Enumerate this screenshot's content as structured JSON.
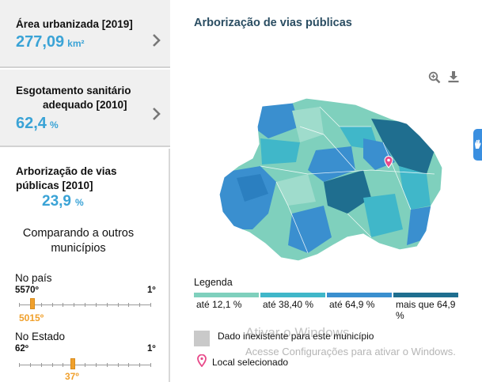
{
  "cards": [
    {
      "title": "Área urbanizada [2019]",
      "value": "277,09",
      "unit": "km²"
    },
    {
      "title_line1": "Esgotamento sanitário",
      "title_line2": "adequado [2010]",
      "value": "62,4",
      "unit": "%"
    }
  ],
  "arborizacao": {
    "title": "Arborização de vias públicas [2010]",
    "value": "23,9",
    "unit": "%"
  },
  "compare_title": "Comparando a outros municípios",
  "rankings": [
    {
      "label": "No país",
      "left": "5570º",
      "right": "1º",
      "value": "5015º",
      "position": 0.1
    },
    {
      "label": "No Estado",
      "left": "62º",
      "right": "1º",
      "value": "37º",
      "position": 0.41
    }
  ],
  "map": {
    "title": "Arborização de vias públicas",
    "icons": [
      "zoom-in-icon",
      "download-icon",
      "location-pin-icon"
    ]
  },
  "legend": {
    "title": "Legenda",
    "items": [
      {
        "label": "até 12,1 %",
        "color": "#7fd0bd"
      },
      {
        "label": "até 38,40 %",
        "color": "#40b7c9"
      },
      {
        "label": "até 64,9 %",
        "color": "#3a8fcf"
      },
      {
        "label": "mais que 64,9 %",
        "color": "#1f6e8f"
      }
    ],
    "no_data": "Dado inexistente para este município",
    "selected": "Local selecionado"
  },
  "watermark": {
    "line1": "Ativar o Windows",
    "line2": "Acesse Configurações para ativar o Windows."
  }
}
